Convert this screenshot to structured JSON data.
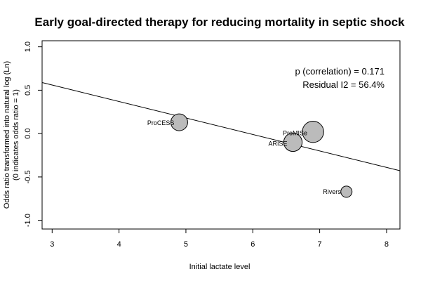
{
  "chart_data": {
    "type": "scatter",
    "title": "Early goal-directed therapy for reducing mortality in septic shock",
    "xlabel": "Initial lactate level",
    "ylabel_line1": "Odds ratio transformed into natural log (Ln)",
    "ylabel_line2": "(0 indicates odds ratio = 1)",
    "xlim": [
      2.85,
      8.2
    ],
    "ylim": [
      -1.1,
      1.07
    ],
    "x_ticks": [
      3,
      4,
      5,
      6,
      7,
      8
    ],
    "y_ticks": [
      1.0,
      0.5,
      0.0,
      -0.5,
      -1.0
    ],
    "x_tick_labels": [
      "3",
      "4",
      "5",
      "6",
      "7",
      "8"
    ],
    "y_tick_labels": [
      "1.0",
      "0.5",
      "0.0",
      "-0.5",
      "-1.0"
    ],
    "points": [
      {
        "label": "ProCESS",
        "x": 4.9,
        "y": 0.13,
        "weight": 0.75
      },
      {
        "label": "ProMISe",
        "x": 6.9,
        "y": 0.02,
        "weight": 0.95
      },
      {
        "label": "ARISE",
        "x": 6.6,
        "y": -0.1,
        "weight": 0.82
      },
      {
        "label": "Rivers",
        "x": 7.4,
        "y": -0.67,
        "weight": 0.5
      }
    ],
    "regression_line": {
      "intercept": 1.13,
      "slope": -0.19
    },
    "annotations": {
      "p_correlation": "p (correlation) = 0.171",
      "residual": "Residual I2 = 56.4%"
    },
    "marker_fill": "#bbbbbb",
    "marker_stroke": "#000000",
    "grid": false
  }
}
